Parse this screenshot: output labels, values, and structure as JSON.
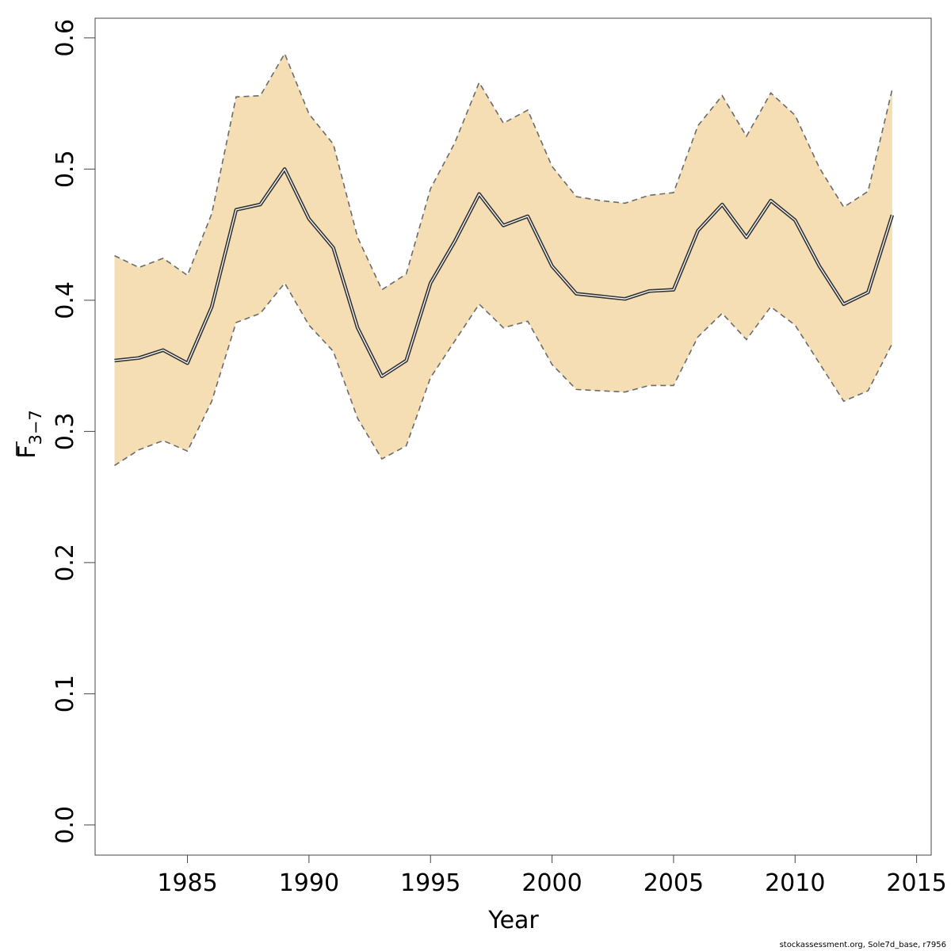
{
  "chart_data": {
    "type": "area",
    "xlabel": "Year",
    "ylabel": {
      "base": "F",
      "subscript": "3−7"
    },
    "xlim": [
      1981.2,
      2015.6
    ],
    "ylim": [
      -0.023,
      0.615
    ],
    "x_ticks": [
      1985,
      1990,
      1995,
      2000,
      2005,
      2010,
      2015
    ],
    "y_ticks": [
      0.0,
      0.1,
      0.2,
      0.3,
      0.4,
      0.5,
      0.6
    ],
    "y_tick_labels": [
      "0.0",
      "0.1",
      "0.2",
      "0.3",
      "0.4",
      "0.5",
      "0.6"
    ],
    "grid": false,
    "colors": {
      "band": "#f5deb3",
      "bound_line": "#6b6b6b",
      "estimate_line": "#333333"
    },
    "x": [
      1982,
      1983,
      1984,
      1985,
      1986,
      1987,
      1988,
      1989,
      1990,
      1991,
      1992,
      1993,
      1994,
      1995,
      1996,
      1997,
      1998,
      1999,
      2000,
      2001,
      2002,
      2003,
      2004,
      2005,
      2006,
      2007,
      2008,
      2009,
      2010,
      2011,
      2012,
      2013,
      2014
    ],
    "series": [
      {
        "role": "estimate",
        "values": [
          0.354,
          0.356,
          0.362,
          0.352,
          0.395,
          0.469,
          0.473,
          0.5,
          0.462,
          0.44,
          0.379,
          0.342,
          0.354,
          0.413,
          0.445,
          0.481,
          0.457,
          0.464,
          0.426,
          0.405,
          0.403,
          0.401,
          0.407,
          0.408,
          0.453,
          0.473,
          0.448,
          0.476,
          0.461,
          0.426,
          0.397,
          0.406,
          0.465
        ]
      },
      {
        "role": "lower_bound",
        "values": [
          0.274,
          0.286,
          0.293,
          0.285,
          0.323,
          0.383,
          0.39,
          0.413,
          0.381,
          0.361,
          0.31,
          0.279,
          0.289,
          0.341,
          0.369,
          0.397,
          0.379,
          0.384,
          0.351,
          0.332,
          0.331,
          0.33,
          0.335,
          0.335,
          0.372,
          0.39,
          0.37,
          0.395,
          0.381,
          0.352,
          0.323,
          0.331,
          0.367
        ]
      },
      {
        "role": "upper_bound",
        "values": [
          0.434,
          0.425,
          0.432,
          0.419,
          0.466,
          0.555,
          0.556,
          0.588,
          0.542,
          0.519,
          0.448,
          0.408,
          0.42,
          0.485,
          0.52,
          0.566,
          0.535,
          0.545,
          0.502,
          0.479,
          0.476,
          0.474,
          0.48,
          0.482,
          0.533,
          0.556,
          0.525,
          0.558,
          0.541,
          0.501,
          0.471,
          0.483,
          0.561
        ]
      }
    ]
  },
  "footnote": "stockassessment.org, Sole7d_base, r7956"
}
